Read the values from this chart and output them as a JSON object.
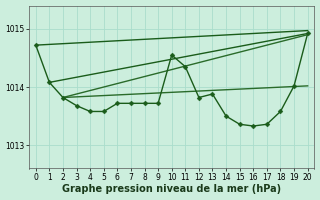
{
  "bg_color": "#cceedd",
  "grid_color": "#aaddcc",
  "xlabel": "Graphe pression niveau de la mer (hPa)",
  "xlabel_fontsize": 7.0,
  "ylim": [
    1012.6,
    1015.4
  ],
  "xlim": [
    -0.5,
    20.5
  ],
  "yticks": [
    1013,
    1014,
    1015
  ],
  "xticks": [
    0,
    1,
    2,
    3,
    4,
    5,
    6,
    7,
    8,
    9,
    10,
    11,
    12,
    13,
    14,
    15,
    16,
    17,
    18,
    19,
    20
  ],
  "series": [
    {
      "x": [
        0,
        20
      ],
      "y": [
        1014.72,
        1014.97
      ],
      "marker": false
    },
    {
      "x": [
        1,
        20
      ],
      "y": [
        1014.08,
        1014.92
      ],
      "marker": false
    },
    {
      "x": [
        2,
        20
      ],
      "y": [
        1013.82,
        1014.9
      ],
      "marker": false
    },
    {
      "x": [
        2,
        20
      ],
      "y": [
        1013.82,
        1014.02
      ],
      "marker": false
    },
    {
      "x": [
        0,
        1,
        2,
        3,
        4,
        5,
        6,
        7,
        8,
        9,
        10,
        11,
        12,
        13,
        14,
        15,
        16,
        17,
        18,
        19,
        20
      ],
      "y": [
        1014.72,
        1014.08,
        1013.82,
        1013.68,
        1013.58,
        1013.58,
        1013.72,
        1013.72,
        1013.72,
        1013.72,
        1014.55,
        1014.35,
        1013.82,
        1013.88,
        1013.5,
        1013.36,
        1013.33,
        1013.36,
        1013.58,
        1014.02,
        1014.92
      ],
      "marker": true
    }
  ],
  "tick_fontsize": 5.5,
  "marker_size": 2.5,
  "linewidth": 1.0,
  "dark_green": "#1a5c1a",
  "mid_green": "#2a6b2a"
}
